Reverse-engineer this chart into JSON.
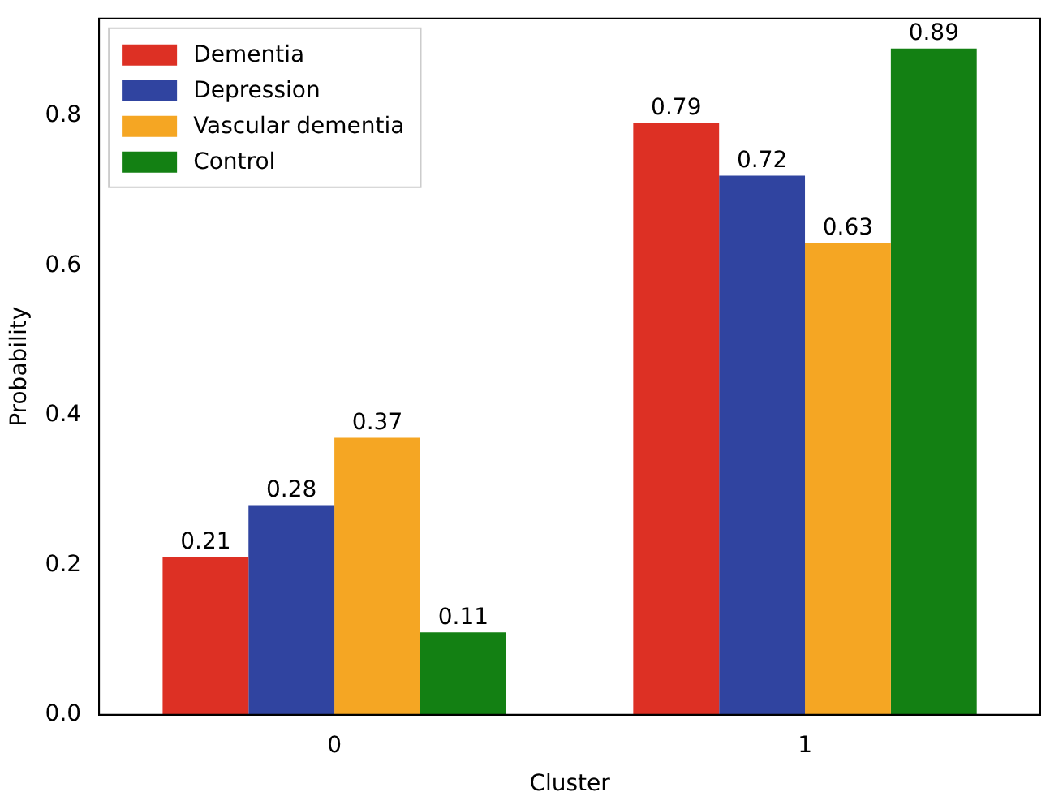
{
  "chart_data": {
    "type": "bar",
    "xlabel": "Cluster",
    "ylabel": "Probability",
    "categories": [
      "0",
      "1"
    ],
    "series": [
      {
        "name": "Dementia",
        "color": "#dd3024",
        "values": [
          0.21,
          0.79
        ]
      },
      {
        "name": "Depression",
        "color": "#3044a0",
        "values": [
          0.28,
          0.72
        ]
      },
      {
        "name": "Vascular dementia",
        "color": "#f5a623",
        "values": [
          0.37,
          0.63
        ]
      },
      {
        "name": "Control",
        "color": "#138013",
        "values": [
          0.11,
          0.89
        ]
      }
    ],
    "ylim": [
      0,
      0.93
    ],
    "yticks": [
      {
        "value": 0,
        "label": "0.0"
      },
      {
        "value": 0.2,
        "label": "0.2"
      },
      {
        "value": 0.4,
        "label": "0.4"
      },
      {
        "value": 0.6,
        "label": "0.6"
      },
      {
        "value": 0.8,
        "label": "0.8"
      }
    ],
    "legend": "top left",
    "data_labels": true
  }
}
